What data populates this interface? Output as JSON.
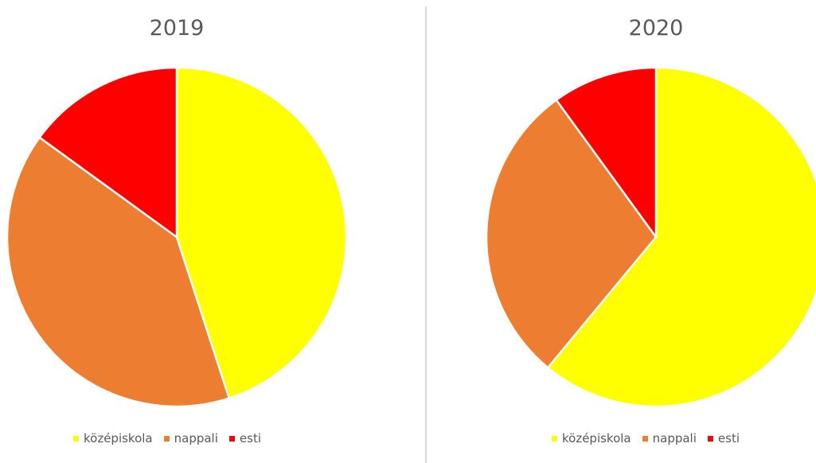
{
  "chart_data": [
    {
      "type": "pie",
      "title": "2019",
      "categories": [
        "középiskola",
        "nappali",
        "esti"
      ],
      "values": [
        45,
        40,
        15
      ],
      "colors": [
        "#ffff00",
        "#ed7d31",
        "#ff0000"
      ],
      "legend_position": "bottom"
    },
    {
      "type": "pie",
      "title": "2020",
      "categories": [
        "középiskola",
        "nappali",
        "esti"
      ],
      "values": [
        61,
        29,
        10
      ],
      "colors": [
        "#ffff00",
        "#ed7d31",
        "#ff0000"
      ],
      "legend_position": "bottom"
    }
  ]
}
